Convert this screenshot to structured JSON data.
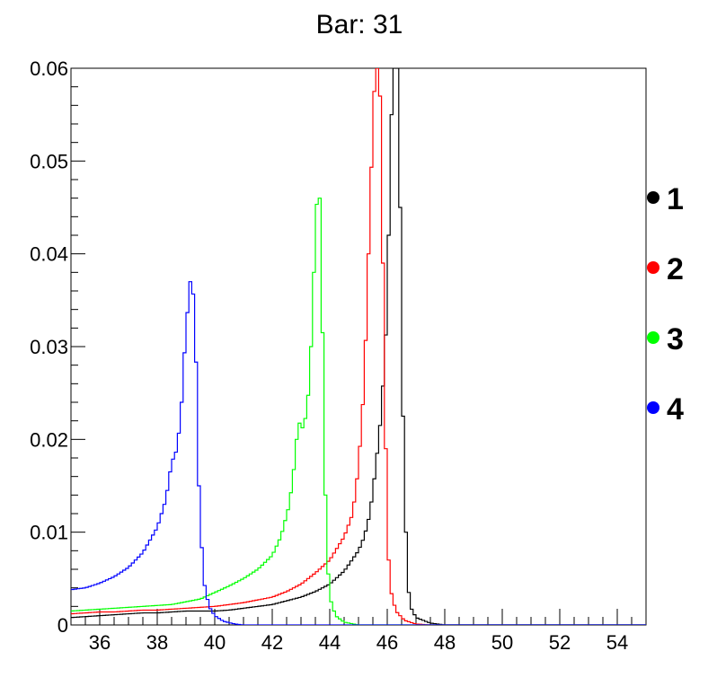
{
  "chart_data": {
    "type": "line",
    "title": "Bar: 31",
    "xlabel": "",
    "ylabel": "",
    "xlim": [
      35,
      55
    ],
    "ylim": [
      0,
      0.06
    ],
    "x_ticks": [
      36,
      38,
      40,
      42,
      44,
      46,
      48,
      50,
      52,
      54
    ],
    "x_tick_labels": [
      "36",
      "38",
      "40",
      "42",
      "44",
      "46",
      "48",
      "50",
      "52",
      "54"
    ],
    "y_ticks": [
      0,
      0.01,
      0.02,
      0.03,
      0.04,
      0.05,
      0.06
    ],
    "y_tick_labels": [
      "0",
      "0.01",
      "0.02",
      "0.03",
      "0.04",
      "0.05",
      "0.06"
    ],
    "grid": false,
    "legend_position": "right",
    "series": [
      {
        "name": "1",
        "color": "#000000",
        "points": [
          [
            35,
            0.0008
          ],
          [
            35.5,
            0.0009
          ],
          [
            36,
            0.001
          ],
          [
            36.5,
            0.0011
          ],
          [
            37,
            0.0012
          ],
          [
            37.5,
            0.0013
          ],
          [
            38,
            0.0013
          ],
          [
            38.5,
            0.0014
          ],
          [
            39,
            0.0015
          ],
          [
            39.5,
            0.0015
          ],
          [
            40,
            0.0015
          ],
          [
            40.5,
            0.0016
          ],
          [
            41,
            0.0018
          ],
          [
            41.5,
            0.002
          ],
          [
            42,
            0.0022
          ],
          [
            42.5,
            0.0026
          ],
          [
            43,
            0.003
          ],
          [
            43.5,
            0.0036
          ],
          [
            44,
            0.0044
          ],
          [
            44.5,
            0.0058
          ],
          [
            45,
            0.008
          ],
          [
            45.2,
            0.0095
          ],
          [
            45.4,
            0.012
          ],
          [
            45.6,
            0.017
          ],
          [
            45.8,
            0.023
          ],
          [
            46,
            0.034
          ],
          [
            46.1,
            0.05
          ],
          [
            46.2,
            0.06
          ],
          [
            46.3,
            0.065
          ],
          [
            46.4,
            0.06
          ],
          [
            46.5,
            0.03
          ],
          [
            46.6,
            0.015
          ],
          [
            46.7,
            0.005
          ],
          [
            46.8,
            0.002
          ],
          [
            47,
            0.0008
          ],
          [
            47.5,
            0.0002
          ],
          [
            48,
            0.0
          ],
          [
            55,
            0.0
          ]
        ]
      },
      {
        "name": "2",
        "color": "#ff0000",
        "points": [
          [
            35,
            0.0012
          ],
          [
            35.5,
            0.0013
          ],
          [
            36,
            0.0014
          ],
          [
            36.5,
            0.0014
          ],
          [
            37,
            0.0015
          ],
          [
            37.5,
            0.0016
          ],
          [
            38,
            0.0016
          ],
          [
            38.5,
            0.0017
          ],
          [
            39,
            0.0018
          ],
          [
            39.5,
            0.0019
          ],
          [
            40,
            0.002
          ],
          [
            40.5,
            0.0022
          ],
          [
            41,
            0.0024
          ],
          [
            41.5,
            0.0027
          ],
          [
            42,
            0.003
          ],
          [
            42.5,
            0.0036
          ],
          [
            43,
            0.0044
          ],
          [
            43.5,
            0.0056
          ],
          [
            44,
            0.007
          ],
          [
            44.5,
            0.0095
          ],
          [
            44.8,
            0.012
          ],
          [
            45,
            0.017
          ],
          [
            45.2,
            0.026
          ],
          [
            45.35,
            0.04
          ],
          [
            45.5,
            0.054
          ],
          [
            45.6,
            0.061
          ],
          [
            45.7,
            0.064
          ],
          [
            45.8,
            0.05
          ],
          [
            45.9,
            0.028
          ],
          [
            46,
            0.01
          ],
          [
            46.1,
            0.004
          ],
          [
            46.3,
            0.0015
          ],
          [
            46.6,
            0.0005
          ],
          [
            47,
            0.0001
          ],
          [
            47.5,
            0.0
          ],
          [
            55,
            0.0
          ]
        ]
      },
      {
        "name": "3",
        "color": "#00ff00",
        "points": [
          [
            35,
            0.0015
          ],
          [
            35.5,
            0.0016
          ],
          [
            36,
            0.0017
          ],
          [
            36.5,
            0.0018
          ],
          [
            37,
            0.0019
          ],
          [
            37.5,
            0.002
          ],
          [
            38,
            0.0021
          ],
          [
            38.5,
            0.0022
          ],
          [
            39,
            0.0025
          ],
          [
            39.5,
            0.0028
          ],
          [
            40,
            0.0035
          ],
          [
            40.5,
            0.0042
          ],
          [
            41,
            0.005
          ],
          [
            41.5,
            0.006
          ],
          [
            42,
            0.0075
          ],
          [
            42.3,
            0.0095
          ],
          [
            42.6,
            0.013
          ],
          [
            42.8,
            0.018
          ],
          [
            42.9,
            0.022
          ],
          [
            43.1,
            0.021
          ],
          [
            43.3,
            0.026
          ],
          [
            43.45,
            0.038
          ],
          [
            43.6,
            0.049
          ],
          [
            43.7,
            0.043
          ],
          [
            43.8,
            0.02
          ],
          [
            43.9,
            0.008
          ],
          [
            44,
            0.003
          ],
          [
            44.2,
            0.001
          ],
          [
            44.5,
            0.0003
          ],
          [
            45,
            0.0
          ],
          [
            55,
            0.0
          ]
        ]
      },
      {
        "name": "4",
        "color": "#0000ff",
        "points": [
          [
            35,
            0.0038
          ],
          [
            35.5,
            0.004
          ],
          [
            36,
            0.0045
          ],
          [
            36.5,
            0.0052
          ],
          [
            37,
            0.0062
          ],
          [
            37.5,
            0.0078
          ],
          [
            38,
            0.0105
          ],
          [
            38.3,
            0.0135
          ],
          [
            38.5,
            0.0175
          ],
          [
            38.7,
            0.019
          ],
          [
            38.85,
            0.024
          ],
          [
            39,
            0.032
          ],
          [
            39.15,
            0.037
          ],
          [
            39.3,
            0.035
          ],
          [
            39.45,
            0.015
          ],
          [
            39.6,
            0.005
          ],
          [
            39.8,
            0.002
          ],
          [
            40,
            0.001
          ],
          [
            40.3,
            0.0004
          ],
          [
            40.7,
            0.0001
          ],
          [
            41,
            0.0
          ],
          [
            55,
            0.0
          ]
        ]
      }
    ]
  }
}
